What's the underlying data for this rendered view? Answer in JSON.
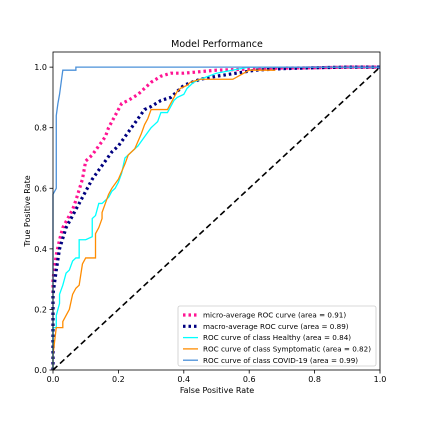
{
  "chart_data": {
    "type": "line",
    "title": "Model Performance",
    "xlabel": "False Positive Rate",
    "ylabel": "True Positive Rate",
    "xlim": [
      0.0,
      1.0
    ],
    "ylim": [
      0.0,
      1.05
    ],
    "xticks": [
      0.0,
      0.2,
      0.4,
      0.6,
      0.8,
      1.0
    ],
    "xtick_labels": [
      "0.0",
      "0.2",
      "0.4",
      "0.6",
      "0.8",
      "1.0"
    ],
    "yticks": [
      0.0,
      0.2,
      0.4,
      0.6,
      0.8,
      1.0
    ],
    "ytick_labels": [
      "0.0",
      "0.2",
      "0.4",
      "0.6",
      "0.8",
      "1.0"
    ],
    "grid": false,
    "legend_position": "lower right",
    "series": [
      {
        "name": "micro-average ROC curve (area = 0.91)",
        "color": "#ff1493",
        "style": "dotted",
        "x": [
          0.0,
          0.0,
          0.01,
          0.02,
          0.03,
          0.05,
          0.06,
          0.07,
          0.09,
          0.1,
          0.12,
          0.14,
          0.16,
          0.17,
          0.18,
          0.2,
          0.21,
          0.23,
          0.26,
          0.28,
          0.3,
          0.33,
          0.36,
          0.4,
          0.45,
          0.5,
          0.56,
          0.62,
          0.7,
          0.8,
          0.9,
          1.0
        ],
        "y": [
          0.0,
          0.3,
          0.38,
          0.43,
          0.47,
          0.51,
          0.53,
          0.56,
          0.63,
          0.69,
          0.71,
          0.74,
          0.77,
          0.8,
          0.82,
          0.86,
          0.88,
          0.89,
          0.91,
          0.93,
          0.95,
          0.97,
          0.98,
          0.98,
          0.985,
          0.99,
          0.992,
          0.995,
          0.997,
          0.998,
          1.0,
          1.0
        ]
      },
      {
        "name": "macro-average ROC curve (area = 0.89)",
        "color": "#000080",
        "style": "dotted",
        "x": [
          0.0,
          0.0,
          0.01,
          0.02,
          0.04,
          0.06,
          0.08,
          0.1,
          0.12,
          0.14,
          0.16,
          0.18,
          0.2,
          0.22,
          0.24,
          0.26,
          0.28,
          0.3,
          0.33,
          0.36,
          0.4,
          0.45,
          0.5,
          0.56,
          0.62,
          0.7,
          0.8,
          0.9,
          1.0
        ],
        "y": [
          0.0,
          0.25,
          0.33,
          0.4,
          0.47,
          0.51,
          0.55,
          0.59,
          0.63,
          0.66,
          0.69,
          0.72,
          0.74,
          0.77,
          0.8,
          0.83,
          0.86,
          0.87,
          0.89,
          0.9,
          0.94,
          0.96,
          0.97,
          0.98,
          0.99,
          0.995,
          0.998,
          1.0,
          1.0
        ]
      },
      {
        "name": "ROC curve of class Healthy (area = 0.84)",
        "color": "#00ffff",
        "style": "solid",
        "x": [
          0.0,
          0.0,
          0.01,
          0.01,
          0.02,
          0.02,
          0.03,
          0.04,
          0.05,
          0.06,
          0.07,
          0.08,
          0.08,
          0.1,
          0.12,
          0.12,
          0.13,
          0.14,
          0.15,
          0.17,
          0.18,
          0.19,
          0.2,
          0.21,
          0.22,
          0.23,
          0.24,
          0.25,
          0.26,
          0.28,
          0.3,
          0.31,
          0.32,
          0.33,
          0.35,
          0.36,
          0.37,
          0.38,
          0.4,
          0.41,
          0.43,
          0.45,
          0.5,
          0.55,
          0.6,
          1.0
        ],
        "y": [
          0.0,
          0.14,
          0.14,
          0.18,
          0.22,
          0.25,
          0.28,
          0.32,
          0.33,
          0.36,
          0.37,
          0.37,
          0.43,
          0.43,
          0.44,
          0.5,
          0.51,
          0.55,
          0.55,
          0.57,
          0.59,
          0.6,
          0.62,
          0.65,
          0.7,
          0.71,
          0.72,
          0.73,
          0.74,
          0.77,
          0.8,
          0.81,
          0.82,
          0.85,
          0.85,
          0.87,
          0.89,
          0.9,
          0.91,
          0.93,
          0.95,
          0.96,
          0.98,
          0.99,
          1.0,
          1.0
        ]
      },
      {
        "name": "ROC curve of class Symptomatic (area = 0.82)",
        "color": "#ff8c00",
        "style": "solid",
        "x": [
          0.0,
          0.0,
          0.01,
          0.03,
          0.03,
          0.04,
          0.05,
          0.06,
          0.07,
          0.08,
          0.09,
          0.1,
          0.13,
          0.13,
          0.14,
          0.15,
          0.15,
          0.16,
          0.17,
          0.18,
          0.2,
          0.22,
          0.23,
          0.25,
          0.27,
          0.28,
          0.29,
          0.3,
          0.35,
          0.36,
          0.37,
          0.38,
          0.39,
          0.41,
          0.42,
          0.45,
          0.5,
          0.55,
          0.6,
          0.68
        ],
        "y": [
          0.0,
          0.05,
          0.14,
          0.14,
          0.16,
          0.18,
          0.2,
          0.25,
          0.27,
          0.28,
          0.35,
          0.37,
          0.37,
          0.45,
          0.47,
          0.5,
          0.52,
          0.55,
          0.58,
          0.6,
          0.63,
          0.68,
          0.71,
          0.73,
          0.78,
          0.81,
          0.83,
          0.86,
          0.86,
          0.88,
          0.9,
          0.92,
          0.93,
          0.94,
          0.95,
          0.96,
          0.96,
          0.96,
          0.99,
          0.99
        ]
      },
      {
        "name": "ROC curve of class COVID-19 (area = 0.99)",
        "color": "#4a90d9",
        "style": "solid",
        "x": [
          0.0,
          0.0,
          0.01,
          0.01,
          0.015,
          0.02,
          0.025,
          0.03,
          0.05,
          0.07,
          0.07,
          0.1,
          0.3,
          0.5,
          1.0
        ],
        "y": [
          0.0,
          0.58,
          0.6,
          0.84,
          0.88,
          0.91,
          0.95,
          0.99,
          0.99,
          0.99,
          1.0,
          1.0,
          1.0,
          1.0,
          1.0
        ]
      },
      {
        "name": "",
        "color": "#000000",
        "style": "dashed",
        "x": [
          0.0,
          1.0
        ],
        "y": [
          0.0,
          1.0
        ]
      }
    ]
  }
}
